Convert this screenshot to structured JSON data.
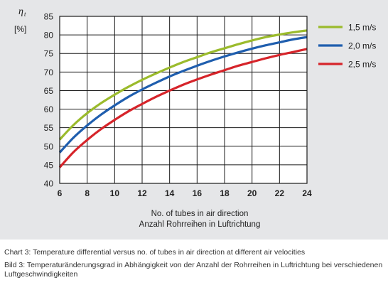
{
  "chart_data": {
    "type": "line",
    "ylabel_symbol": "η",
    "ylabel_sub": "t",
    "ylabel_unit": "[%]",
    "xlabel": [
      "No. of tubes in air direction",
      "Anzahl Rohrreihen in Luftrichtung"
    ],
    "xlim": [
      6,
      24
    ],
    "ylim": [
      40,
      85
    ],
    "x_ticks": [
      6,
      8,
      10,
      12,
      14,
      16,
      18,
      20,
      22,
      24
    ],
    "y_ticks": [
      40,
      45,
      50,
      55,
      60,
      65,
      70,
      75,
      80,
      85
    ],
    "grid": true,
    "legend_position": "right",
    "x": [
      6,
      7,
      8,
      9,
      10,
      11,
      12,
      13,
      14,
      15,
      16,
      17,
      18,
      19,
      20,
      21,
      22,
      23,
      24
    ],
    "series": [
      {
        "name": "1,5 m/s",
        "color": "#9bbb2c",
        "values": [
          51.8,
          55.7,
          58.9,
          61.6,
          63.9,
          66.0,
          67.9,
          69.6,
          71.2,
          72.7,
          74.0,
          75.3,
          76.4,
          77.5,
          78.5,
          79.4,
          80.1,
          80.7,
          81.2
        ]
      },
      {
        "name": "2,0 m/s",
        "color": "#1f5eae",
        "values": [
          48.3,
          52.3,
          55.6,
          58.5,
          61.0,
          63.3,
          65.3,
          67.1,
          68.8,
          70.3,
          71.7,
          73.0,
          74.2,
          75.3,
          76.3,
          77.2,
          78.0,
          78.8,
          79.4
        ]
      },
      {
        "name": "2,5 m/s",
        "color": "#d6242a",
        "values": [
          44.3,
          48.4,
          51.7,
          54.6,
          57.1,
          59.4,
          61.4,
          63.3,
          65.0,
          66.6,
          68.0,
          69.3,
          70.5,
          71.7,
          72.7,
          73.7,
          74.6,
          75.4,
          76.2
        ]
      }
    ]
  },
  "captions": {
    "english": "Chart 3: Temperature differential versus no. of tubes in air direction at different air velocities",
    "german": "Bild 3: Temperaturänderungsgrad in Abhängigkeit von der Anzahl der Rohrreihen in Luftrichtung bei verschiedenen Luftgeschwindigkeiten"
  }
}
